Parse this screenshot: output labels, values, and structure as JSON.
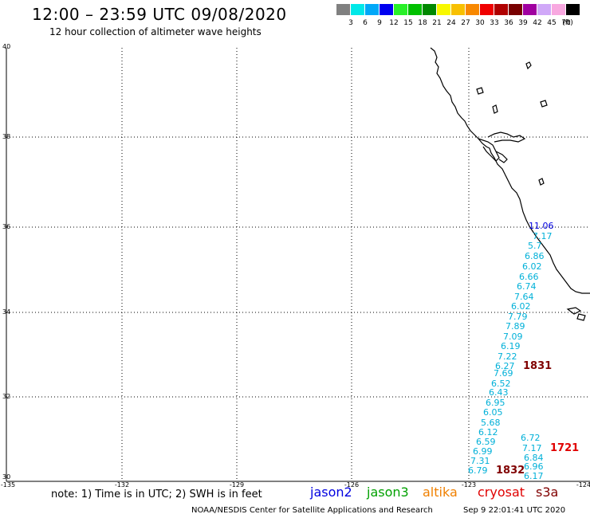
{
  "header": {
    "title": "12:00 – 23:59 UTC 09/08/2020",
    "subtitle": "12 hour collection of altimeter wave heights"
  },
  "legend": {
    "unit": "(ft)",
    "bins": [
      {
        "color": "#808080",
        "label": "3"
      },
      {
        "color": "#00e8e8",
        "label": "6"
      },
      {
        "color": "#00a8f8",
        "label": "9"
      },
      {
        "color": "#0000f0",
        "label": "12"
      },
      {
        "color": "#28f028",
        "label": "15"
      },
      {
        "color": "#00c000",
        "label": "18"
      },
      {
        "color": "#008800",
        "label": "21"
      },
      {
        "color": "#f8f800",
        "label": "24"
      },
      {
        "color": "#f8c000",
        "label": "27"
      },
      {
        "color": "#f88800",
        "label": "30"
      },
      {
        "color": "#f00000",
        "label": "33"
      },
      {
        "color": "#b00000",
        "label": "36"
      },
      {
        "color": "#780000",
        "label": "39"
      },
      {
        "color": "#a000a0",
        "label": "42"
      },
      {
        "color": "#d0a8f8",
        "label": "45"
      },
      {
        "color": "#f8a8e0",
        "label": "70"
      },
      {
        "color": "#000000",
        "label": ""
      }
    ]
  },
  "map": {
    "lon_range": [
      -135,
      -124
    ],
    "lat_range": [
      30,
      40
    ],
    "lon_ticks": [
      "-135",
      "-132",
      "-129",
      "-126",
      "-123",
      "-124"
    ],
    "lat_ticks": [
      "40",
      "38",
      "36",
      "34",
      "32",
      "30"
    ],
    "grid": true
  },
  "observations": {
    "color": "#00b0d8",
    "heights": [
      "11.06",
      "7.17",
      "5.7",
      "6.86",
      "6.02",
      "6.66",
      "6.74",
      "7.64",
      "6.02",
      "7.79",
      "7.89",
      "7.09",
      "6.19",
      "7.22",
      "6.27",
      "7.69",
      "6.52",
      "6.43",
      "6.95",
      "6.05",
      "5.68",
      "6.12",
      "6.59",
      "6.99",
      "7.31",
      "6.79",
      "6.72",
      "7.17",
      "6.84",
      "6.96",
      "6.17"
    ],
    "times": [
      {
        "label": "1831",
        "color": "#800000"
      },
      {
        "label": "1721",
        "color": "#e00000"
      },
      {
        "label": "1832",
        "color": "#800000"
      }
    ]
  },
  "footer": {
    "note": "note: 1) Time is in UTC; 2) SWH is in feet",
    "satellites": [
      {
        "name": "jason2",
        "color": "#0000e0"
      },
      {
        "name": "jason3",
        "color": "#00a000"
      },
      {
        "name": "altika",
        "color": "#f08000"
      },
      {
        "name": "cryosat",
        "color": "#e00000"
      },
      {
        "name": "s3a",
        "color": "#800000"
      }
    ],
    "credit": "NOAA/NESDIS Center for Satellite Applications and Research",
    "timestamp": "Sep  9 22:01:41 UTC 2020"
  }
}
